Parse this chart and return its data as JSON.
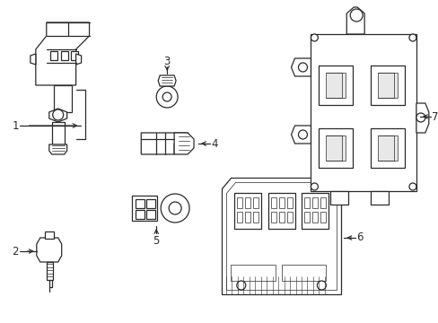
{
  "bg_color": "#ffffff",
  "line_color": "#2a2a2a",
  "label_color": "#000000",
  "label_fontsize": 8.5,
  "fig_width": 4.89,
  "fig_height": 3.6,
  "dpi": 100
}
